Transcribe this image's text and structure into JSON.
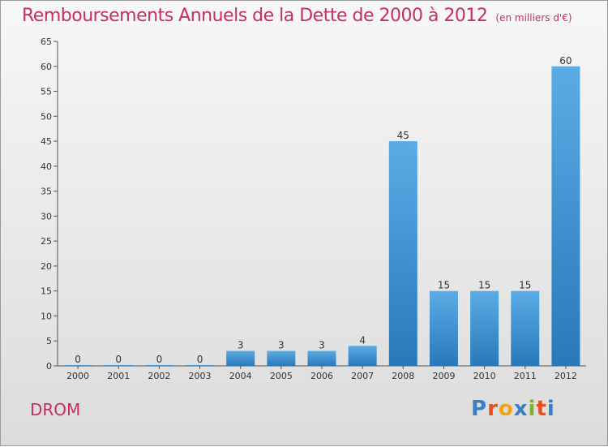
{
  "chart_data": {
    "type": "bar",
    "title": "Remboursements Annuels de la Dette de 2000 à 2012",
    "unit_note": "(en milliers d'€)",
    "categories": [
      "2000",
      "2001",
      "2002",
      "2003",
      "2004",
      "2005",
      "2006",
      "2007",
      "2008",
      "2009",
      "2010",
      "2011",
      "2012"
    ],
    "values": [
      0,
      0,
      0,
      0,
      3,
      3,
      3,
      4,
      45,
      15,
      15,
      15,
      60
    ],
    "ylim": [
      0,
      65
    ],
    "yticks": [
      0,
      5,
      10,
      15,
      20,
      25,
      30,
      35,
      40,
      45,
      50,
      55,
      60,
      65
    ],
    "grid": false,
    "bar_color_top": "#5aace6",
    "bar_color_bottom": "#2a78b8"
  },
  "footer": {
    "commune": "DROM"
  },
  "logo": {
    "letters": [
      "P",
      "r",
      "o",
      "x",
      "i",
      "t",
      "i"
    ],
    "colors": [
      "#3a7fc6",
      "#e94e1b",
      "#f2a20c",
      "#3a7fc6",
      "#7bb32e",
      "#e94e1b",
      "#3a7fc6"
    ]
  }
}
